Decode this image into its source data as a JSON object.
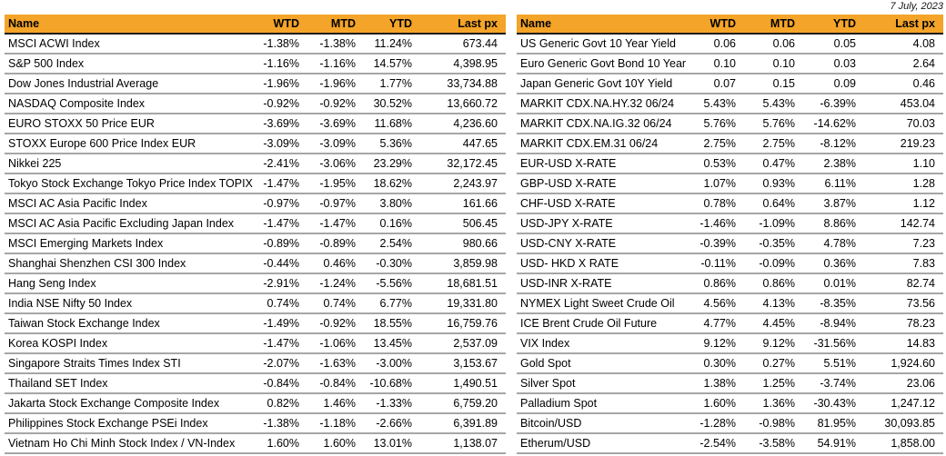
{
  "report": {
    "date_label": "7 July, 2023"
  },
  "colors": {
    "header_bg": "#F4A428",
    "header_text": "#000000",
    "header_border": "#1A1A1A",
    "row_border": "#A6A6A6"
  },
  "left_table": {
    "columns": [
      "Name",
      "WTD",
      "MTD",
      "YTD",
      "Last px"
    ],
    "rows": [
      [
        "MSCI ACWI Index",
        "-1.38%",
        "-1.38%",
        "11.24%",
        "673.44"
      ],
      [
        "S&P 500 Index",
        "-1.16%",
        "-1.16%",
        "14.57%",
        "4,398.95"
      ],
      [
        "Dow Jones Industrial Average",
        "-1.96%",
        "-1.96%",
        "1.77%",
        "33,734.88"
      ],
      [
        "NASDAQ Composite Index",
        "-0.92%",
        "-0.92%",
        "30.52%",
        "13,660.72"
      ],
      [
        "EURO STOXX 50 Price EUR",
        "-3.69%",
        "-3.69%",
        "11.68%",
        "4,236.60"
      ],
      [
        "STOXX Europe 600 Price Index EUR",
        "-3.09%",
        "-3.09%",
        "5.36%",
        "447.65"
      ],
      [
        "Nikkei 225",
        "-2.41%",
        "-3.06%",
        "23.29%",
        "32,172.45"
      ],
      [
        "Tokyo Stock Exchange Tokyo Price Index TOPIX",
        "-1.47%",
        "-1.95%",
        "18.62%",
        "2,243.97"
      ],
      [
        "MSCI AC Asia Pacific Index",
        "-0.97%",
        "-0.97%",
        "3.80%",
        "161.66"
      ],
      [
        "MSCI AC Asia Pacific Excluding Japan Index",
        "-1.47%",
        "-1.47%",
        "0.16%",
        "506.45"
      ],
      [
        "MSCI Emerging Markets Index",
        "-0.89%",
        "-0.89%",
        "2.54%",
        "980.66"
      ],
      [
        "Shanghai Shenzhen CSI 300 Index",
        "-0.44%",
        "0.46%",
        "-0.30%",
        "3,859.98"
      ],
      [
        "Hang Seng Index",
        "-2.91%",
        "-1.24%",
        "-5.56%",
        "18,681.51"
      ],
      [
        "India NSE Nifty 50 Index",
        "0.74%",
        "0.74%",
        "6.77%",
        "19,331.80"
      ],
      [
        "Taiwan Stock Exchange  Index",
        "-1.49%",
        "-0.92%",
        "18.55%",
        "16,759.76"
      ],
      [
        "Korea KOSPI Index",
        "-1.47%",
        "-1.06%",
        "13.45%",
        "2,537.09"
      ],
      [
        "Singapore Straits Times Index STI",
        "-2.07%",
        "-1.63%",
        "-3.00%",
        "3,153.67"
      ],
      [
        "Thailand SET Index",
        "-0.84%",
        "-0.84%",
        "-10.68%",
        "1,490.51"
      ],
      [
        "Jakarta Stock Exchange Composite Index",
        "0.82%",
        "1.46%",
        "-1.33%",
        "6,759.20"
      ],
      [
        "Philippines Stock Exchange PSEi Index",
        "-1.38%",
        "-1.18%",
        "-2.66%",
        "6,391.89"
      ],
      [
        "Vietnam Ho Chi Minh Stock Index / VN-Index",
        "1.60%",
        "1.60%",
        "13.01%",
        "1,138.07"
      ]
    ]
  },
  "right_table": {
    "columns": [
      "Name",
      "WTD",
      "MTD",
      "YTD",
      "Last px"
    ],
    "rows": [
      [
        "US Generic Govt 10 Year Yield",
        "0.06",
        "0.06",
        "0.05",
        "4.08"
      ],
      [
        "Euro Generic Govt Bond 10 Year",
        "0.10",
        "0.10",
        "0.03",
        "2.64"
      ],
      [
        "Japan Generic Govt 10Y Yield",
        "0.07",
        "0.15",
        "0.09",
        "0.46"
      ],
      [
        "MARKIT CDX.NA.HY.32 06/24",
        "5.43%",
        "5.43%",
        "-6.39%",
        "453.04"
      ],
      [
        "MARKIT CDX.NA.IG.32 06/24",
        "5.76%",
        "5.76%",
        "-14.62%",
        "70.03"
      ],
      [
        "MARKIT CDX.EM.31 06/24",
        "2.75%",
        "2.75%",
        "-8.12%",
        "219.23"
      ],
      [
        "EUR-USD X-RATE",
        "0.53%",
        "0.47%",
        "2.38%",
        "1.10"
      ],
      [
        "GBP-USD X-RATE",
        "1.07%",
        "0.93%",
        "6.11%",
        "1.28"
      ],
      [
        "CHF-USD X-RATE",
        "0.78%",
        "0.64%",
        "3.87%",
        "1.12"
      ],
      [
        "USD-JPY X-RATE",
        "-1.46%",
        "-1.09%",
        "8.86%",
        "142.74"
      ],
      [
        "USD-CNY X-RATE",
        "-0.39%",
        "-0.35%",
        "4.78%",
        "7.23"
      ],
      [
        "USD- HKD X RATE",
        "-0.11%",
        "-0.09%",
        "0.36%",
        "7.83"
      ],
      [
        "USD-INR X-RATE",
        "0.86%",
        "0.86%",
        "0.01%",
        "82.74"
      ],
      [
        "NYMEX Light Sweet Crude Oil",
        "4.56%",
        "4.13%",
        "-8.35%",
        "73.56"
      ],
      [
        "ICE Brent Crude Oil Future",
        "4.77%",
        "4.45%",
        "-8.94%",
        "78.23"
      ],
      [
        "VIX Index",
        "9.12%",
        "9.12%",
        "-31.56%",
        "14.83"
      ],
      [
        "Gold Spot",
        "0.30%",
        "0.27%",
        "5.51%",
        "1,924.60"
      ],
      [
        "Silver Spot",
        "1.38%",
        "1.25%",
        "-3.74%",
        "23.06"
      ],
      [
        "Palladium Spot",
        "1.60%",
        "1.36%",
        "-30.43%",
        "1,247.12"
      ],
      [
        "Bitcoin/USD",
        "-1.28%",
        "-0.98%",
        "81.95%",
        "30,093.85"
      ],
      [
        "Etherum/USD",
        "-2.54%",
        "-3.58%",
        "54.91%",
        "1,858.00"
      ]
    ]
  }
}
